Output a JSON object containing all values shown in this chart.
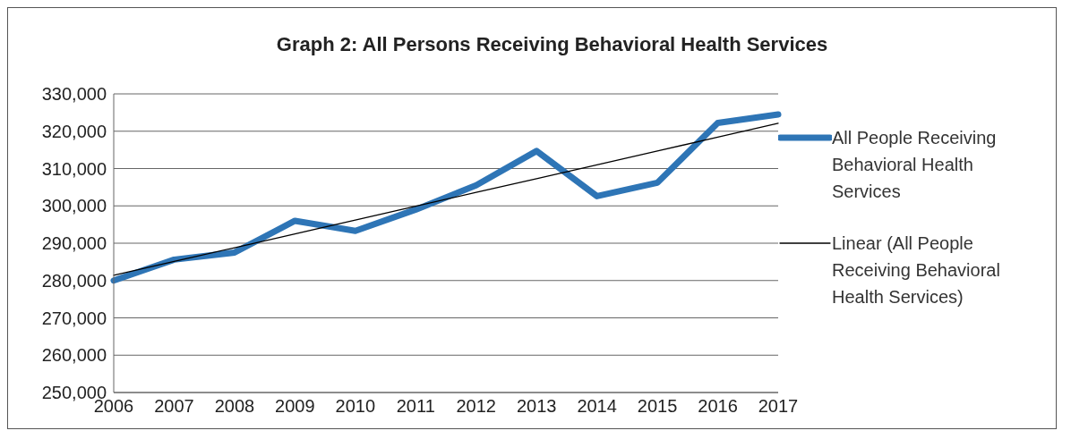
{
  "chart_data": {
    "type": "line",
    "title": "Graph 2: All Persons Receiving Behavioral Health Services",
    "categories": [
      "2006",
      "2007",
      "2008",
      "2009",
      "2010",
      "2011",
      "2012",
      "2013",
      "2014",
      "2015",
      "2016",
      "2017"
    ],
    "series": [
      {
        "name": "All People Receiving Behavioral Health Services",
        "color": "#2e75b6",
        "values": [
          280000,
          285600,
          287500,
          296000,
          293300,
          299000,
          305500,
          314700,
          302600,
          306200,
          322200,
          324500
        ]
      },
      {
        "name": "Linear (All People Receiving Behavioral Health Services)",
        "color": "#000000",
        "values": [
          281400,
          285100,
          288800,
          292500,
          296200,
          299900,
          303600,
          307300,
          311000,
          314700,
          318400,
          322100
        ]
      }
    ],
    "ylim": [
      250000,
      330000
    ],
    "yticks": [
      {
        "value": 250000,
        "label": "250,000"
      },
      {
        "value": 260000,
        "label": "260,000"
      },
      {
        "value": 270000,
        "label": "270,000"
      },
      {
        "value": 280000,
        "label": "280,000"
      },
      {
        "value": 290000,
        "label": "290,000"
      },
      {
        "value": 300000,
        "label": "300,000"
      },
      {
        "value": 310000,
        "label": "310,000"
      },
      {
        "value": 320000,
        "label": "320,000"
      },
      {
        "value": 330000,
        "label": "330,000"
      }
    ],
    "grid": "y",
    "legend": "right",
    "marker": "none",
    "line_style": "solid"
  }
}
